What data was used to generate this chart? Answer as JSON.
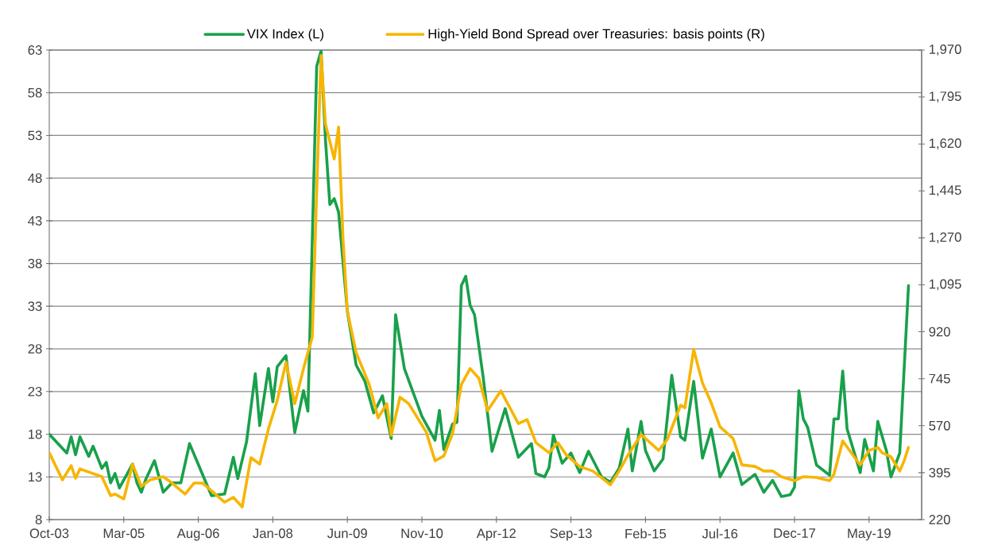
{
  "chart_data": {
    "type": "line",
    "series": [
      {
        "name": "VIX Index (L)",
        "color": "#19a04b",
        "axis": "y",
        "x": [
          "2003-10",
          "2004-02",
          "2004-03",
          "2004-04",
          "2004-05",
          "2004-07",
          "2004-08",
          "2004-10",
          "2004-11",
          "2004-12",
          "2005-01",
          "2005-02",
          "2005-05",
          "2005-06",
          "2005-07",
          "2005-08",
          "2005-10",
          "2005-12",
          "2006-02",
          "2006-04",
          "2006-06",
          "2006-11",
          "2007-02",
          "2007-04",
          "2007-05",
          "2007-07",
          "2007-09",
          "2007-10",
          "2007-12",
          "2008-01",
          "2008-02",
          "2008-04",
          "2008-06",
          "2008-08",
          "2008-09",
          "2008-11",
          "2008-12",
          "2009-01",
          "2009-02",
          "2009-03",
          "2009-04",
          "2009-06",
          "2009-08",
          "2009-10",
          "2009-12",
          "2010-02",
          "2010-04",
          "2010-05",
          "2010-07",
          "2010-11",
          "2011-02",
          "2011-03",
          "2011-04",
          "2011-06",
          "2011-07",
          "2011-08",
          "2011-09",
          "2011-10",
          "2011-11",
          "2012-01",
          "2012-03",
          "2012-06",
          "2012-09",
          "2012-12",
          "2013-01",
          "2013-03",
          "2013-04",
          "2013-05",
          "2013-07",
          "2013-09",
          "2013-11",
          "2014-01",
          "2014-04",
          "2014-06",
          "2014-08",
          "2014-10",
          "2014-11",
          "2015-01",
          "2015-02",
          "2015-04",
          "2015-06",
          "2015-08",
          "2015-10",
          "2015-11",
          "2016-01",
          "2016-03",
          "2016-05",
          "2016-07",
          "2016-10",
          "2016-12",
          "2017-03",
          "2017-05",
          "2017-07",
          "2017-09",
          "2017-11",
          "2017-12",
          "2018-01",
          "2018-02",
          "2018-03",
          "2018-05",
          "2018-08",
          "2018-09",
          "2018-10",
          "2018-11",
          "2018-12",
          "2019-03",
          "2019-04",
          "2019-06",
          "2019-07",
          "2019-09",
          "2019-10",
          "2019-12",
          "2020-02"
        ],
        "values": [
          18.0,
          15.8,
          17.7,
          15.6,
          17.7,
          15.4,
          16.6,
          14.0,
          14.7,
          12.3,
          13.4,
          11.7,
          14.5,
          12.3,
          11.2,
          12.7,
          14.9,
          11.2,
          12.3,
          12.3,
          16.9,
          10.8,
          11.0,
          15.3,
          12.8,
          17.1,
          25.1,
          19.0,
          25.7,
          21.8,
          25.9,
          27.2,
          18.2,
          23.1,
          20.7,
          61.1,
          62.9,
          52.5,
          44.9,
          45.6,
          44.0,
          32.4,
          26.1,
          24.2,
          20.5,
          22.5,
          17.5,
          32.0,
          25.7,
          20.1,
          17.3,
          20.8,
          16.2,
          19.2,
          19.4,
          35.4,
          36.5,
          33.1,
          32.0,
          24.6,
          16.0,
          21.0,
          15.3,
          16.9,
          13.4,
          13.0,
          14.1,
          17.9,
          14.6,
          15.8,
          13.5,
          16.0,
          13.0,
          12.4,
          14.0,
          18.6,
          13.7,
          19.5,
          16.1,
          13.7,
          15.1,
          24.9,
          17.7,
          17.3,
          24.2,
          15.2,
          18.6,
          13.0,
          15.8,
          12.1,
          13.3,
          11.2,
          12.6,
          10.7,
          10.9,
          11.8,
          23.1,
          19.8,
          18.8,
          14.4,
          13.2,
          19.8,
          19.8,
          25.4,
          18.6,
          13.5,
          17.4,
          13.7,
          19.5,
          16.0,
          13.0,
          15.8,
          35.4
        ]
      },
      {
        "name": "High-Yield Bond Spread over Treasuries: basis points (R)",
        "color": "#f7b500",
        "axis": "y2",
        "x": [
          "2003-10",
          "2004-01",
          "2004-03",
          "2004-04",
          "2004-05",
          "2004-10",
          "2004-12",
          "2005-01",
          "2005-03",
          "2005-05",
          "2005-07",
          "2005-09",
          "2005-12",
          "2006-02",
          "2006-05",
          "2006-07",
          "2006-09",
          "2007-02",
          "2007-04",
          "2007-06",
          "2007-08",
          "2007-10",
          "2007-12",
          "2008-02",
          "2008-04",
          "2008-06",
          "2008-08",
          "2008-10",
          "2008-11",
          "2008-12",
          "2009-01",
          "2009-03",
          "2009-04",
          "2009-05",
          "2009-06",
          "2009-08",
          "2009-11",
          "2010-01",
          "2010-03",
          "2010-04",
          "2010-06",
          "2010-08",
          "2010-12",
          "2011-02",
          "2011-04",
          "2011-06",
          "2011-08",
          "2011-10",
          "2011-12",
          "2012-02",
          "2012-05",
          "2012-09",
          "2012-11",
          "2013-01",
          "2013-04",
          "2013-06",
          "2013-08",
          "2013-11",
          "2014-02",
          "2014-06",
          "2014-08",
          "2014-10",
          "2015-01",
          "2015-05",
          "2015-07",
          "2015-10",
          "2015-11",
          "2016-01",
          "2016-03",
          "2016-05",
          "2016-07",
          "2016-10",
          "2016-12",
          "2017-03",
          "2017-05",
          "2017-07",
          "2017-09",
          "2017-12",
          "2018-02",
          "2018-05",
          "2018-08",
          "2018-09",
          "2018-11",
          "2019-02",
          "2019-03",
          "2019-05",
          "2019-07",
          "2019-08",
          "2019-10",
          "2019-12",
          "2020-01",
          "2020-02"
        ],
        "values": [
          469,
          368,
          421,
          374,
          409,
          380,
          309,
          315,
          297,
          427,
          344,
          368,
          380,
          356,
          315,
          356,
          356,
          285,
          303,
          267,
          451,
          427,
          558,
          664,
          806,
          652,
          783,
          901,
          1446,
          1950,
          1695,
          1564,
          1683,
          1268,
          996,
          842,
          723,
          599,
          652,
          534,
          676,
          652,
          546,
          439,
          457,
          540,
          723,
          783,
          747,
          626,
          700,
          578,
          593,
          507,
          469,
          507,
          460,
          418,
          401,
          350,
          401,
          460,
          537,
          478,
          519,
          646,
          637,
          854,
          729,
          655,
          566,
          522,
          424,
          418,
          401,
          401,
          380,
          365,
          380,
          377,
          365,
          389,
          513,
          445,
          424,
          478,
          489,
          469,
          454,
          401,
          439,
          489
        ]
      }
    ],
    "xlim": [
      "2003-10",
      "2020-05"
    ],
    "xticks": [
      {
        "value": "2003-10",
        "label": "Oct-03"
      },
      {
        "value": "2005-03",
        "label": "Mar-05"
      },
      {
        "value": "2006-08",
        "label": "Aug-06"
      },
      {
        "value": "2008-01",
        "label": "Jan-08"
      },
      {
        "value": "2009-06",
        "label": "Jun-09"
      },
      {
        "value": "2010-11",
        "label": "Nov-10"
      },
      {
        "value": "2012-04",
        "label": "Apr-12"
      },
      {
        "value": "2013-09",
        "label": "Sep-13"
      },
      {
        "value": "2015-02",
        "label": "Feb-15"
      },
      {
        "value": "2016-07",
        "label": "Jul-16"
      },
      {
        "value": "2017-12",
        "label": "Dec-17"
      },
      {
        "value": "2019-05",
        "label": "May-19"
      }
    ],
    "ylim": [
      8,
      63
    ],
    "yticks": [
      8,
      13,
      18,
      23,
      28,
      33,
      38,
      43,
      48,
      53,
      58,
      63
    ],
    "y2lim": [
      220,
      1970
    ],
    "y2ticks": [
      220,
      395,
      570,
      745,
      920,
      {
        "value": 1095,
        "label": "1,095"
      },
      {
        "value": 1270,
        "label": "1,270"
      },
      {
        "value": 1445,
        "label": "1,445"
      },
      {
        "value": 1620,
        "label": "1,620"
      },
      {
        "value": 1795,
        "label": "1,795"
      },
      {
        "value": 1970,
        "label": "1,970"
      }
    ],
    "grid": "y",
    "legend": "top"
  }
}
